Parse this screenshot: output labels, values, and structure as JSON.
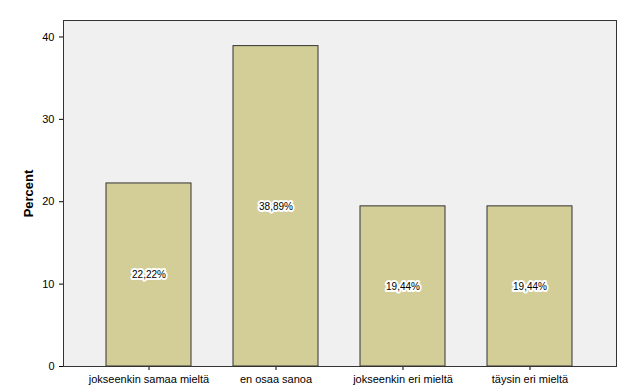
{
  "chart_data": {
    "type": "bar",
    "categories": [
      "jokseenkin samaa mieltä",
      "en osaa sanoa",
      "jokseenkin eri mieltä",
      "täysin eri mieltä"
    ],
    "values": [
      22.22,
      38.89,
      19.44,
      19.44
    ],
    "value_labels": [
      "22,22%",
      "38,89%",
      "19,44%",
      "19,44%"
    ],
    "data_labels": true,
    "color": "#d3ce97",
    "y_label": "Percent",
    "ylim": [
      0,
      42
    ],
    "yticks": [
      0,
      10,
      20,
      30,
      40
    ],
    "grid": false
  }
}
